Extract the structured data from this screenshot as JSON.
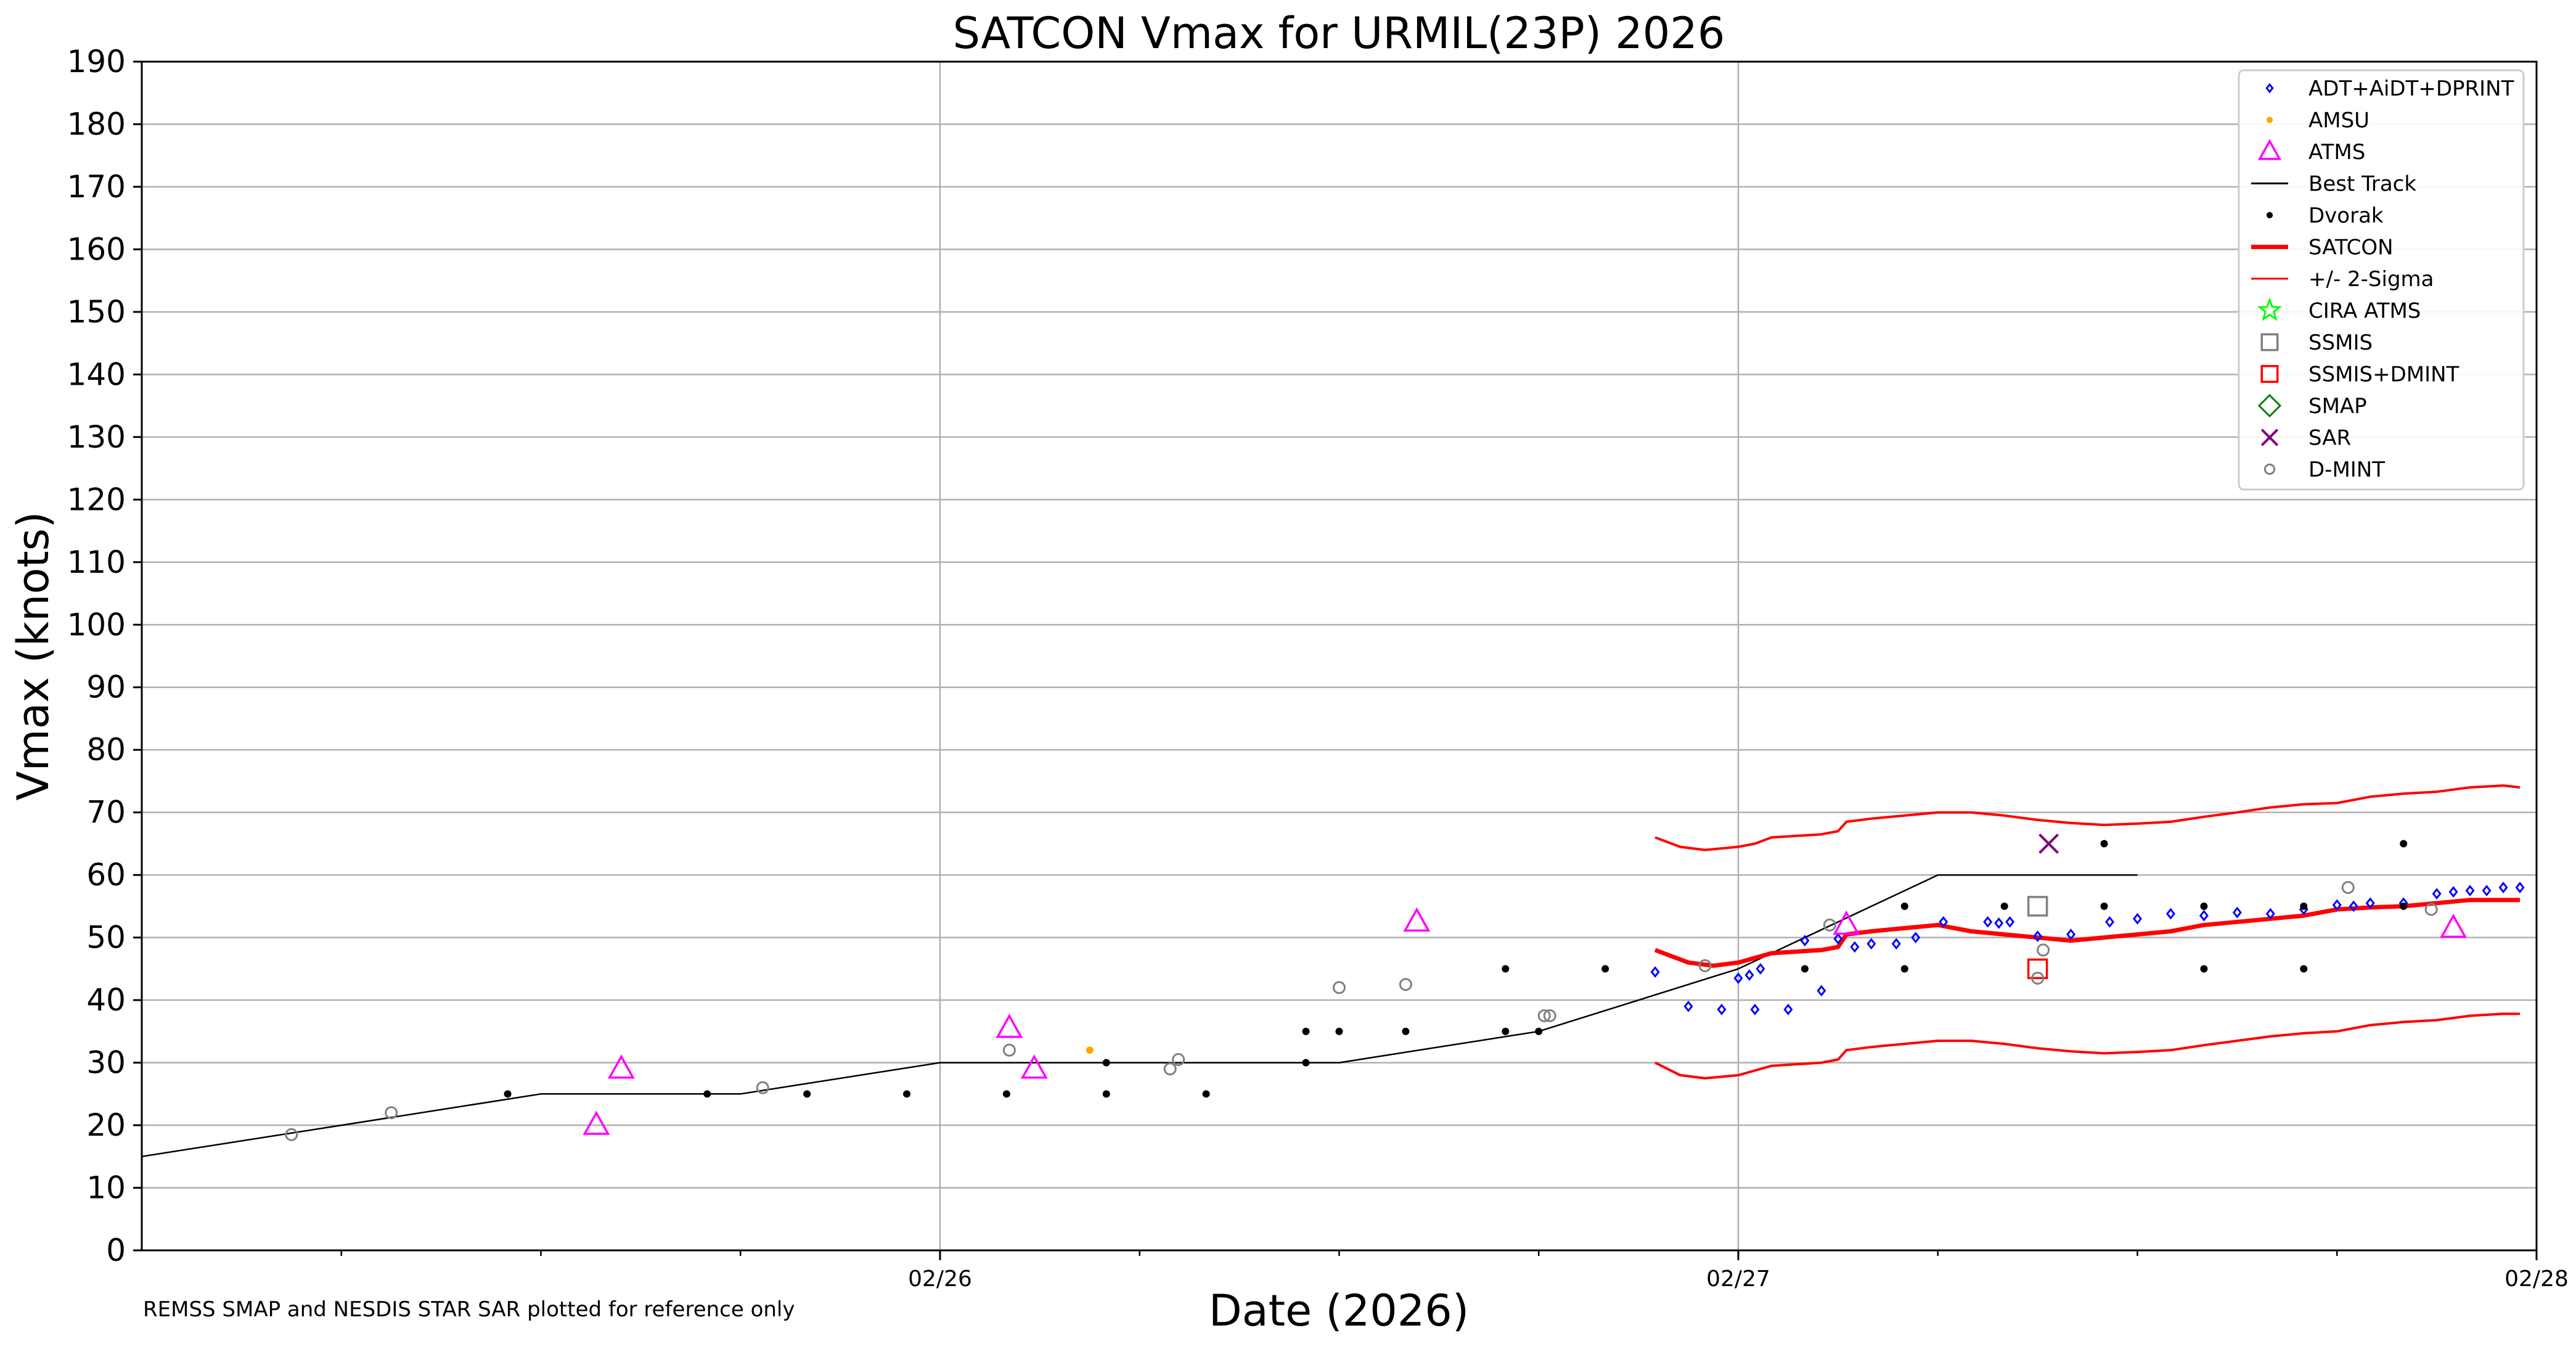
{
  "chart_data": {
    "type": "line",
    "title": "SATCON Vmax for URMIL(23P) 2026",
    "xlabel": "Date (2026)",
    "ylabel": "Vmax (knots)",
    "footnote": "REMSS SMAP and NESDIS STAR SAR plotted for reference only",
    "xlim": [
      "2026-02-25T00:00",
      "2026-02-28T00:00"
    ],
    "ylim": [
      0,
      190
    ],
    "yticks": [
      0,
      10,
      20,
      30,
      40,
      50,
      60,
      70,
      80,
      90,
      100,
      110,
      120,
      130,
      140,
      150,
      160,
      170,
      180,
      190
    ],
    "xticks": [
      {
        "t": "2026-02-26T00:00",
        "label": "02/26"
      },
      {
        "t": "2026-02-27T00:00",
        "label": "02/27"
      },
      {
        "t": "2026-02-28T00:00",
        "label": "02/28"
      }
    ],
    "grid": true,
    "legend_position": "top-right",
    "legend": [
      {
        "name": "ADT+AiDT+DPRINT",
        "marker": "diamond",
        "color": "#0000ff"
      },
      {
        "name": "AMSU",
        "marker": "dot",
        "color": "#ffa500"
      },
      {
        "name": "ATMS",
        "marker": "triangle",
        "color": "#ff00ff"
      },
      {
        "name": "Best Track",
        "marker": "line",
        "color": "#000000"
      },
      {
        "name": "Dvorak",
        "marker": "dot",
        "color": "#000000"
      },
      {
        "name": "SATCON",
        "marker": "thickline",
        "color": "#ff0000"
      },
      {
        "name": "+/- 2-Sigma",
        "marker": "thinline",
        "color": "#ff0000"
      },
      {
        "name": "CIRA ATMS",
        "marker": "star",
        "color": "#00ff00"
      },
      {
        "name": "SSMIS",
        "marker": "square",
        "color": "#808080"
      },
      {
        "name": "SSMIS+DMINT",
        "marker": "square",
        "color": "#ff0000"
      },
      {
        "name": "SMAP",
        "marker": "bigdiamond",
        "color": "#008000"
      },
      {
        "name": "SAR",
        "marker": "x",
        "color": "#800080"
      },
      {
        "name": "D-MINT",
        "marker": "circle",
        "color": "#808080"
      }
    ],
    "series": [
      {
        "name": "Best Track",
        "color": "#000000",
        "points": [
          [
            "2026-02-25T00:00",
            15
          ],
          [
            "2026-02-25T06:00",
            20
          ],
          [
            "2026-02-25T12:00",
            25
          ],
          [
            "2026-02-25T18:00",
            25
          ],
          [
            "2026-02-26T00:00",
            30
          ],
          [
            "2026-02-26T06:00",
            30
          ],
          [
            "2026-02-26T12:00",
            30
          ],
          [
            "2026-02-26T18:00",
            35
          ],
          [
            "2026-02-27T00:00",
            45
          ],
          [
            "2026-02-27T06:00",
            60
          ],
          [
            "2026-02-27T12:00",
            60
          ]
        ]
      },
      {
        "name": "SATCON",
        "color": "#ff0000",
        "points": [
          [
            "2026-02-26T21:30",
            48
          ],
          [
            "2026-02-26T22:30",
            46
          ],
          [
            "2026-02-26T23:15",
            45.5
          ],
          [
            "2026-02-27T00:00",
            46
          ],
          [
            "2026-02-27T01:00",
            47.5
          ],
          [
            "2026-02-27T02:30",
            48
          ],
          [
            "2026-02-27T03:00",
            48.5
          ],
          [
            "2026-02-27T03:15",
            50.5
          ],
          [
            "2026-02-27T04:00",
            51
          ],
          [
            "2026-02-27T05:00",
            51.5
          ],
          [
            "2026-02-27T06:00",
            52
          ],
          [
            "2026-02-27T06:30",
            51.5
          ],
          [
            "2026-02-27T07:00",
            51
          ],
          [
            "2026-02-27T08:00",
            50.5
          ],
          [
            "2026-02-27T09:00",
            50
          ],
          [
            "2026-02-27T10:00",
            49.5
          ],
          [
            "2026-02-27T11:00",
            50
          ],
          [
            "2026-02-27T12:00",
            50.5
          ],
          [
            "2026-02-27T13:00",
            51
          ],
          [
            "2026-02-27T14:00",
            52
          ],
          [
            "2026-02-27T15:00",
            52.5
          ],
          [
            "2026-02-27T16:00",
            53
          ],
          [
            "2026-02-27T17:00",
            53.5
          ],
          [
            "2026-02-27T18:00",
            54.5
          ],
          [
            "2026-02-27T19:00",
            54.8
          ],
          [
            "2026-02-27T20:00",
            55
          ],
          [
            "2026-02-27T21:00",
            55.5
          ],
          [
            "2026-02-27T22:00",
            56
          ],
          [
            "2026-02-27T23:00",
            56
          ],
          [
            "2026-02-27T23:30",
            56
          ]
        ]
      },
      {
        "name": "+/- 2-Sigma upper",
        "color": "#ff0000",
        "points": [
          [
            "2026-02-26T21:30",
            66
          ],
          [
            "2026-02-26T22:15",
            64.5
          ],
          [
            "2026-02-26T23:00",
            64
          ],
          [
            "2026-02-27T00:00",
            64.5
          ],
          [
            "2026-02-27T00:30",
            65
          ],
          [
            "2026-02-27T01:00",
            66
          ],
          [
            "2026-02-27T02:30",
            66.5
          ],
          [
            "2026-02-27T03:00",
            67
          ],
          [
            "2026-02-27T03:15",
            68.5
          ],
          [
            "2026-02-27T04:00",
            69
          ],
          [
            "2026-02-27T05:00",
            69.5
          ],
          [
            "2026-02-27T06:00",
            70
          ],
          [
            "2026-02-27T07:00",
            70
          ],
          [
            "2026-02-27T08:00",
            69.5
          ],
          [
            "2026-02-27T09:00",
            68.8
          ],
          [
            "2026-02-27T10:00",
            68.3
          ],
          [
            "2026-02-27T11:00",
            68
          ],
          [
            "2026-02-27T12:00",
            68.2
          ],
          [
            "2026-02-27T13:00",
            68.5
          ],
          [
            "2026-02-27T14:00",
            69.3
          ],
          [
            "2026-02-27T15:00",
            70
          ],
          [
            "2026-02-27T16:00",
            70.8
          ],
          [
            "2026-02-27T17:00",
            71.3
          ],
          [
            "2026-02-27T18:00",
            71.5
          ],
          [
            "2026-02-27T19:00",
            72.5
          ],
          [
            "2026-02-27T20:00",
            73
          ],
          [
            "2026-02-27T21:00",
            73.3
          ],
          [
            "2026-02-27T22:00",
            74
          ],
          [
            "2026-02-27T23:00",
            74.3
          ],
          [
            "2026-02-27T23:30",
            74
          ]
        ]
      },
      {
        "name": "+/- 2-Sigma lower",
        "color": "#ff0000",
        "points": [
          [
            "2026-02-26T21:30",
            30
          ],
          [
            "2026-02-26T22:15",
            28
          ],
          [
            "2026-02-26T23:00",
            27.5
          ],
          [
            "2026-02-27T00:00",
            28
          ],
          [
            "2026-02-27T01:00",
            29.5
          ],
          [
            "2026-02-27T02:30",
            30
          ],
          [
            "2026-02-27T03:00",
            30.5
          ],
          [
            "2026-02-27T03:15",
            32
          ],
          [
            "2026-02-27T04:00",
            32.5
          ],
          [
            "2026-02-27T05:00",
            33
          ],
          [
            "2026-02-27T06:00",
            33.5
          ],
          [
            "2026-02-27T07:00",
            33.5
          ],
          [
            "2026-02-27T08:00",
            33
          ],
          [
            "2026-02-27T09:00",
            32.3
          ],
          [
            "2026-02-27T10:00",
            31.8
          ],
          [
            "2026-02-27T11:00",
            31.5
          ],
          [
            "2026-02-27T12:00",
            31.7
          ],
          [
            "2026-02-27T13:00",
            32
          ],
          [
            "2026-02-27T14:00",
            32.8
          ],
          [
            "2026-02-27T15:00",
            33.5
          ],
          [
            "2026-02-27T16:00",
            34.2
          ],
          [
            "2026-02-27T17:00",
            34.7
          ],
          [
            "2026-02-27T18:00",
            35
          ],
          [
            "2026-02-27T19:00",
            36
          ],
          [
            "2026-02-27T20:00",
            36.5
          ],
          [
            "2026-02-27T21:00",
            36.8
          ],
          [
            "2026-02-27T22:00",
            37.5
          ],
          [
            "2026-02-27T23:00",
            37.8
          ],
          [
            "2026-02-27T23:30",
            37.8
          ]
        ]
      }
    ],
    "points": {
      "ADT+AiDT+DPRINT": [
        [
          "2026-02-26T21:30",
          44.5
        ],
        [
          "2026-02-26T22:30",
          39
        ],
        [
          "2026-02-26T23:30",
          38.5
        ],
        [
          "2026-02-27T00:30",
          38.5
        ],
        [
          "2026-02-27T01:30",
          38.5
        ],
        [
          "2026-02-27T02:30",
          41.5
        ],
        [
          "2026-02-27T00:00",
          43.5
        ],
        [
          "2026-02-27T00:20",
          44
        ],
        [
          "2026-02-27T00:40",
          45
        ],
        [
          "2026-02-27T02:00",
          49.5
        ],
        [
          "2026-02-27T03:00",
          49.8
        ],
        [
          "2026-02-27T03:30",
          48.5
        ],
        [
          "2026-02-27T04:00",
          49
        ],
        [
          "2026-02-27T04:45",
          49
        ],
        [
          "2026-02-27T05:20",
          50
        ],
        [
          "2026-02-27T06:10",
          52.5
        ],
        [
          "2026-02-27T07:30",
          52.5
        ],
        [
          "2026-02-27T07:50",
          52.3
        ],
        [
          "2026-02-27T08:10",
          52.5
        ],
        [
          "2026-02-27T09:00",
          50.2
        ],
        [
          "2026-02-27T10:00",
          50.5
        ],
        [
          "2026-02-27T11:10",
          52.5
        ],
        [
          "2026-02-27T12:00",
          53
        ],
        [
          "2026-02-27T13:00",
          53.8
        ],
        [
          "2026-02-27T14:00",
          53.5
        ],
        [
          "2026-02-27T15:00",
          54
        ],
        [
          "2026-02-27T16:00",
          53.8
        ],
        [
          "2026-02-27T17:00",
          54.5
        ],
        [
          "2026-02-27T18:00",
          55.2
        ],
        [
          "2026-02-27T18:30",
          55
        ],
        [
          "2026-02-27T19:00",
          55.5
        ],
        [
          "2026-02-27T20:00",
          55.5
        ],
        [
          "2026-02-27T21:00",
          57
        ],
        [
          "2026-02-27T21:30",
          57.3
        ],
        [
          "2026-02-27T22:00",
          57.5
        ],
        [
          "2026-02-27T22:30",
          57.5
        ],
        [
          "2026-02-27T23:00",
          58
        ],
        [
          "2026-02-27T23:30",
          58
        ]
      ],
      "AMSU": [
        [
          "2026-02-26T04:30",
          32
        ]
      ],
      "ATMS": [
        [
          "2026-02-25T13:40",
          20
        ],
        [
          "2026-02-25T14:25",
          29
        ],
        [
          "2026-02-26T02:05",
          35.5
        ],
        [
          "2026-02-26T02:50",
          29
        ],
        [
          "2026-02-26T14:20",
          52.5
        ],
        [
          "2026-02-27T03:15",
          52
        ],
        [
          "2026-02-27T21:30",
          51.5
        ]
      ],
      "Dvorak": [
        [
          "2026-02-25T11:00",
          25
        ],
        [
          "2026-02-25T17:00",
          25
        ],
        [
          "2026-02-25T20:00",
          25
        ],
        [
          "2026-02-25T23:00",
          25
        ],
        [
          "2026-02-26T02:00",
          25
        ],
        [
          "2026-02-26T05:00",
          30
        ],
        [
          "2026-02-26T05:00",
          25
        ],
        [
          "2026-02-26T08:00",
          25
        ],
        [
          "2026-02-26T11:00",
          35
        ],
        [
          "2026-02-26T11:00",
          30
        ],
        [
          "2026-02-26T12:00",
          35
        ],
        [
          "2026-02-26T14:00",
          35
        ],
        [
          "2026-02-26T17:00",
          45
        ],
        [
          "2026-02-26T17:00",
          35
        ],
        [
          "2026-02-26T18:00",
          35
        ],
        [
          "2026-02-26T20:00",
          45
        ],
        [
          "2026-02-27T02:00",
          45
        ],
        [
          "2026-02-27T05:00",
          55
        ],
        [
          "2026-02-27T05:00",
          45
        ],
        [
          "2026-02-27T08:00",
          55
        ],
        [
          "2026-02-27T11:00",
          65
        ],
        [
          "2026-02-27T11:00",
          55
        ],
        [
          "2026-02-27T14:00",
          55
        ],
        [
          "2026-02-27T14:00",
          45
        ],
        [
          "2026-02-27T17:00",
          55
        ],
        [
          "2026-02-27T17:00",
          45
        ],
        [
          "2026-02-27T20:00",
          65
        ],
        [
          "2026-02-27T20:00",
          55
        ]
      ],
      "SSMIS": [
        [
          "2026-02-27T09:00",
          55
        ]
      ],
      "SSMIS+DMINT": [
        [
          "2026-02-27T09:00",
          45
        ]
      ],
      "SAR": [
        [
          "2026-02-27T09:20",
          65
        ]
      ],
      "D-MINT": [
        [
          "2026-02-25T04:30",
          18.5
        ],
        [
          "2026-02-25T07:30",
          22
        ],
        [
          "2026-02-25T18:40",
          26
        ],
        [
          "2026-02-26T02:05",
          32
        ],
        [
          "2026-02-26T06:55",
          29
        ],
        [
          "2026-02-26T07:10",
          30.5
        ],
        [
          "2026-02-26T12:00",
          42
        ],
        [
          "2026-02-26T14:00",
          42.5
        ],
        [
          "2026-02-26T18:10",
          37.5
        ],
        [
          "2026-02-26T18:20",
          37.5
        ],
        [
          "2026-02-26T23:00",
          45.5
        ],
        [
          "2026-02-27T02:45",
          52
        ],
        [
          "2026-02-27T09:00",
          43.5
        ],
        [
          "2026-02-27T09:10",
          48
        ],
        [
          "2026-02-27T18:20",
          58
        ],
        [
          "2026-02-27T20:50",
          54.5
        ]
      ]
    }
  }
}
